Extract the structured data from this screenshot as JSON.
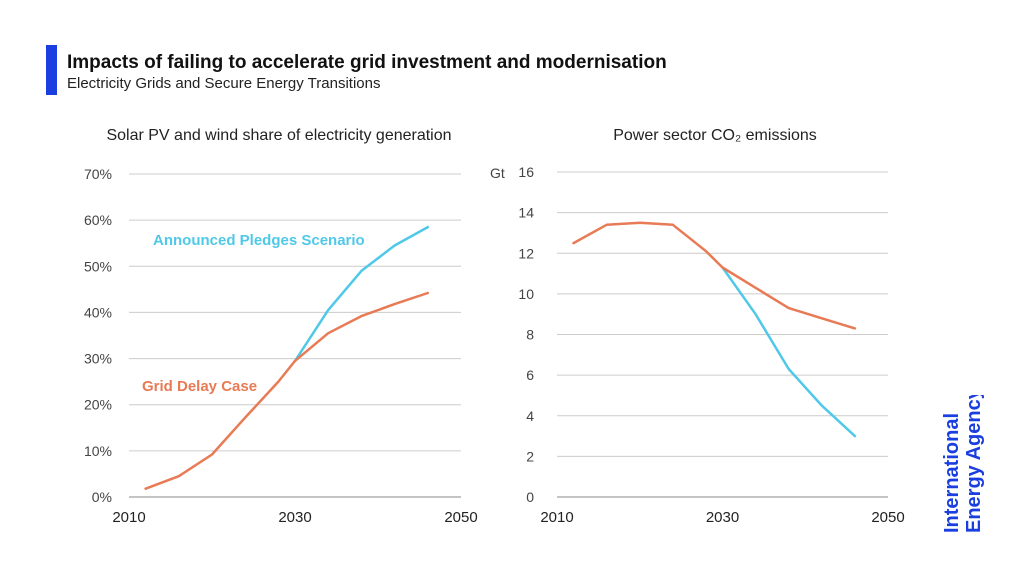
{
  "header": {
    "title": "Impacts of failing to accelerate grid investment and modernisation",
    "subtitle": "Electricity Grids and Secure Energy Transitions",
    "accent_color": "#1a3ee0"
  },
  "brand": {
    "line1": "International",
    "line2": "Energy Agency",
    "color": "#1a3ee0",
    "icon": "iea-logo"
  },
  "colors": {
    "announced_pledges": "#50c8e8",
    "grid_delay": "#e87a55",
    "grid": "#cccccc"
  },
  "chart_data": [
    {
      "type": "line",
      "title": "Solar PV and wind share of electricity generation",
      "xlabel": "",
      "ylabel": "",
      "xlim": [
        2010,
        2050
      ],
      "ylim": [
        0,
        70
      ],
      "x_ticks": [
        "2010",
        "2030",
        "2050"
      ],
      "y_ticks": [
        "0%",
        "10%",
        "20%",
        "30%",
        "40%",
        "50%",
        "60%",
        "70%"
      ],
      "grid": true,
      "series": [
        {
          "name": "Announced Pledges Scenario",
          "color_key": "announced_pledges",
          "x": [
            2030,
            2034,
            2038,
            2042,
            2046
          ],
          "y": [
            29.5,
            40.5,
            49,
            54.5,
            58.5
          ]
        },
        {
          "name": "Grid Delay Case",
          "color_key": "grid_delay",
          "x": [
            2012,
            2016,
            2020,
            2024,
            2028,
            2030,
            2034,
            2038,
            2042,
            2046
          ],
          "y": [
            1.8,
            4.5,
            9.2,
            17.2,
            25,
            29.5,
            35.5,
            39.2,
            41.8,
            44.2
          ]
        }
      ]
    },
    {
      "type": "line",
      "title": "Power sector CO₂ emissions",
      "xlabel": "",
      "ylabel": "Gt",
      "xlim": [
        2010,
        2050
      ],
      "ylim": [
        0,
        16
      ],
      "x_ticks": [
        "2010",
        "2030",
        "2050"
      ],
      "y_ticks": [
        "0",
        "2",
        "4",
        "6",
        "8",
        "10",
        "12",
        "14",
        "16"
      ],
      "grid": true,
      "series": [
        {
          "name": "Announced Pledges Scenario",
          "color_key": "announced_pledges",
          "x": [
            2030,
            2034,
            2038,
            2042,
            2046
          ],
          "y": [
            11.3,
            9,
            6.3,
            4.5,
            3
          ]
        },
        {
          "name": "Grid Delay Case",
          "color_key": "grid_delay",
          "x": [
            2012,
            2016,
            2020,
            2024,
            2028,
            2030,
            2034,
            2038,
            2042,
            2046
          ],
          "y": [
            12.5,
            13.4,
            13.5,
            13.4,
            12.1,
            11.3,
            10.3,
            9.3,
            8.8,
            8.3
          ]
        }
      ]
    }
  ]
}
